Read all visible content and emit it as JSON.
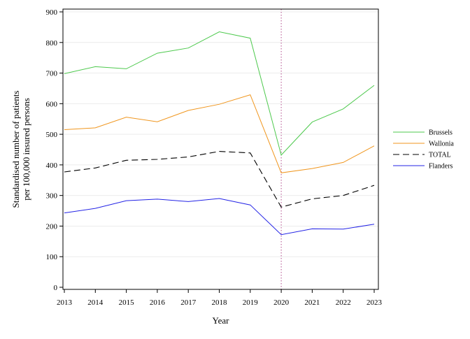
{
  "chart_data": {
    "type": "line",
    "title": "",
    "xlabel": "Year",
    "ylabel_lines": [
      "Standardised number of patients",
      "per 100,000 insured persons"
    ],
    "x": [
      "2013",
      "2014",
      "2015",
      "2016",
      "2017",
      "2018",
      "2019",
      "2020",
      "2021",
      "2022",
      "2023"
    ],
    "ylim": [
      0,
      900
    ],
    "yticks": [
      "0",
      "100",
      "200",
      "300",
      "400",
      "500",
      "600",
      "700",
      "800",
      "900"
    ],
    "grid": "horizontal, light",
    "reference_line": {
      "x": "2020",
      "style": "dotted",
      "color": "#b04a8a"
    },
    "legend_position": "right",
    "series": [
      {
        "name": "Brussels",
        "color": "#4dc94d",
        "dash": "solid",
        "values": [
          698,
          721,
          714,
          765,
          782,
          835,
          814,
          432,
          540,
          583,
          660
        ]
      },
      {
        "name": "Wallonia",
        "color": "#f0961e",
        "dash": "solid",
        "values": [
          515,
          521,
          556,
          541,
          578,
          598,
          629,
          374,
          388,
          408,
          462
        ]
      },
      {
        "name": "TOTAL",
        "color": "#000000",
        "dash": "dashed",
        "values": [
          377,
          390,
          415,
          418,
          426,
          444,
          439,
          262,
          289,
          300,
          333
        ]
      },
      {
        "name": "Flanders",
        "color": "#2323e6",
        "dash": "solid",
        "values": [
          243,
          258,
          283,
          288,
          280,
          290,
          269,
          172,
          191,
          190,
          206
        ]
      }
    ]
  }
}
